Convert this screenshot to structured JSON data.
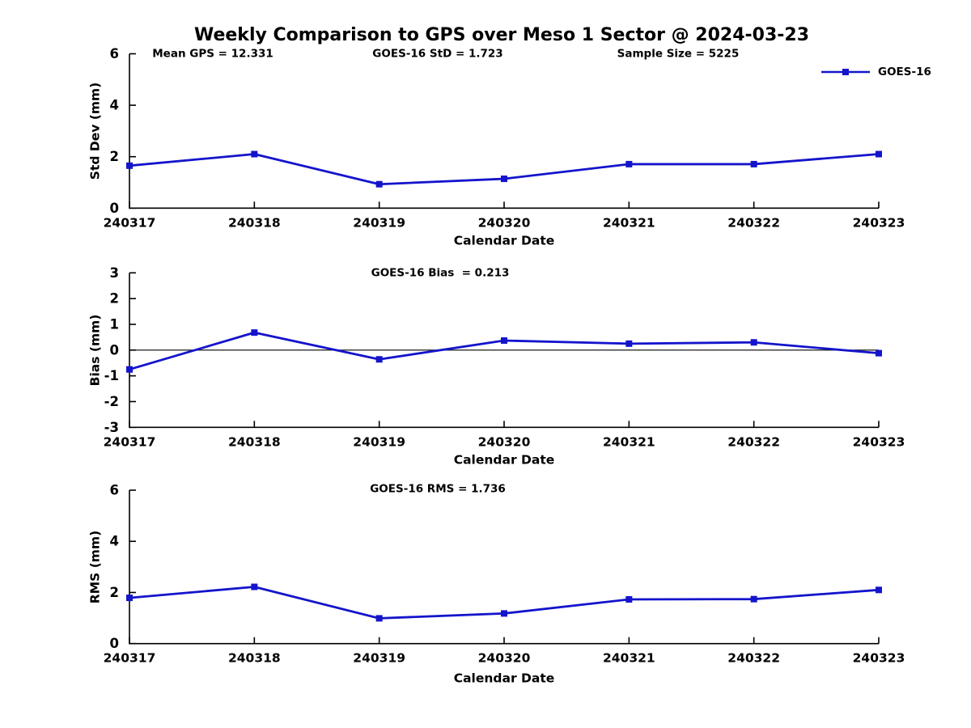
{
  "title": "Weekly Comparison to GPS over Meso 1 Sector @ 2024-03-23",
  "legend": {
    "label": "GOES-16",
    "color": "#1414cc"
  },
  "colors": {
    "series": "#1414cc",
    "axis": "#000000",
    "background": "#ffffff",
    "zero_line": "#000000"
  },
  "chart_data": [
    {
      "type": "line",
      "title": "",
      "annotations": [
        "Mean GPS = 12.331",
        "GOES-16 StD = 1.723",
        "Sample Size = 5225"
      ],
      "categories": [
        "240317",
        "240318",
        "240319",
        "240320",
        "240321",
        "240322",
        "240323"
      ],
      "series": [
        {
          "name": "GOES-16",
          "values": [
            1.65,
            2.1,
            0.93,
            1.14,
            1.71,
            1.71,
            2.1
          ]
        }
      ],
      "xlabel": "Calendar Date",
      "ylabel": "Std Dev (mm)",
      "ylim": [
        0,
        6
      ],
      "yticks": [
        0,
        2,
        4,
        6
      ],
      "marker": "square",
      "grid": false,
      "zero_line": false,
      "legend_position": "top-right"
    },
    {
      "type": "line",
      "title": "GOES-16 Bias  = 0.213",
      "categories": [
        "240317",
        "240318",
        "240319",
        "240320",
        "240321",
        "240322",
        "240323"
      ],
      "series": [
        {
          "name": "GOES-16",
          "values": [
            -0.75,
            0.68,
            -0.36,
            0.37,
            0.25,
            0.3,
            -0.12
          ]
        }
      ],
      "xlabel": "Calendar Date",
      "ylabel": "Bias (mm)",
      "ylim": [
        -3,
        3
      ],
      "yticks": [
        -3,
        -2,
        -1,
        0,
        1,
        2,
        3
      ],
      "marker": "square",
      "grid": false,
      "zero_line": true
    },
    {
      "type": "line",
      "title": "GOES-16 RMS = 1.736",
      "categories": [
        "240317",
        "240318",
        "240319",
        "240320",
        "240321",
        "240322",
        "240323"
      ],
      "series": [
        {
          "name": "GOES-16",
          "values": [
            1.79,
            2.22,
            0.99,
            1.18,
            1.73,
            1.74,
            2.1
          ]
        }
      ],
      "xlabel": "Calendar Date",
      "ylabel": "RMS (mm)",
      "ylim": [
        0,
        6
      ],
      "yticks": [
        0,
        2,
        4,
        6
      ],
      "marker": "square",
      "grid": false,
      "zero_line": false
    }
  ]
}
